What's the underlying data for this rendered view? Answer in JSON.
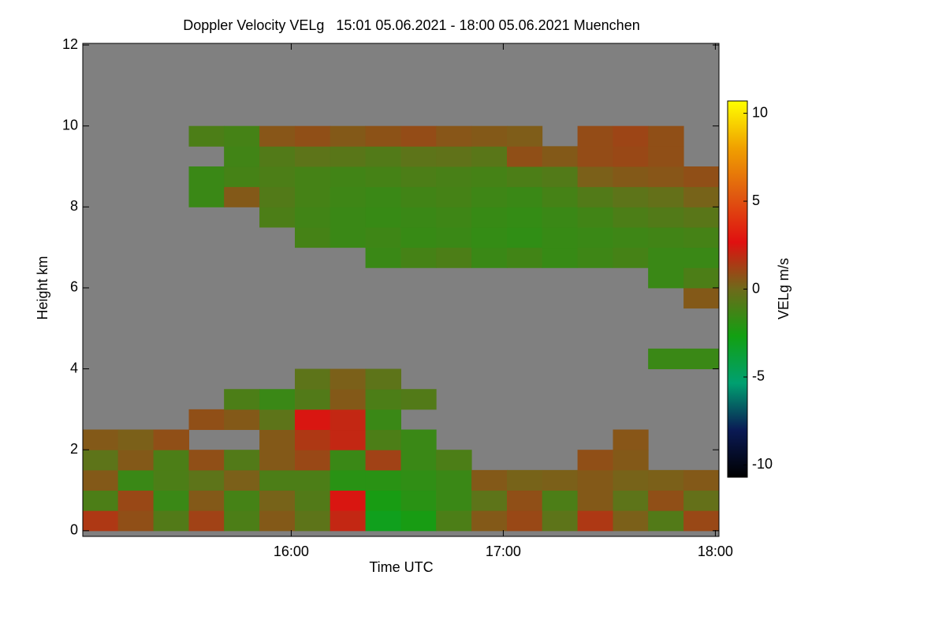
{
  "chart_data": {
    "type": "heatmap",
    "title": "Doppler Velocity VELg   15:01 05.06.2021 - 18:00 05.06.2021 Muenchen",
    "x_label": "Time UTC",
    "y_label": "Height km",
    "colorbar_label": "VELg m/s",
    "background": "#808080",
    "colors": [
      "#000000",
      "#0a1a55",
      "#00a070",
      "#12a012",
      "#6e6a1a",
      "#e01010",
      "#e05a10",
      "#f0a000",
      "#ffff00"
    ],
    "clim": [
      -10.7,
      10.7
    ],
    "cticks": [
      -10,
      -5,
      0,
      5,
      10
    ],
    "xlim": [
      15.017,
      18.017
    ],
    "xticks": [
      {
        "value": 16,
        "label": "16:00"
      },
      {
        "value": 17,
        "label": "17:00"
      },
      {
        "value": 18,
        "label": "18:00"
      }
    ],
    "ylim": [
      -0.14,
      12.04
    ],
    "yticks": [
      0,
      2,
      4,
      6,
      8,
      10,
      12
    ],
    "x_bins": [
      15.017,
      15.183,
      15.35,
      15.517,
      15.683,
      15.85,
      16.017,
      16.183,
      16.35,
      16.517,
      16.683,
      16.85,
      17.017,
      17.183,
      17.35,
      17.517,
      17.683,
      17.85,
      18.017
    ],
    "y_bins": [
      0,
      0.5,
      1,
      1.5,
      2,
      2.5,
      3,
      3.5,
      4,
      4.5,
      5,
      5.5,
      6,
      6.5,
      7,
      7.5,
      8,
      8.5,
      9,
      9.5,
      10,
      10.5,
      11,
      11.5,
      12
    ],
    "values": [
      [
        1.5,
        0.8,
        -0.8,
        1.2,
        -1.0,
        0.5,
        -0.5,
        2.0,
        -3.0,
        -2.5,
        -1.0,
        0.5,
        1.0,
        -0.5,
        1.5,
        0.3,
        -0.8,
        1.0
      ],
      [
        -1.0,
        1.0,
        -1.5,
        0.5,
        -1.2,
        0.2,
        -0.8,
        2.5,
        -2.5,
        -2.0,
        -1.5,
        -0.5,
        0.8,
        -1.0,
        0.5,
        -0.5,
        0.8,
        -0.3
      ],
      [
        0.5,
        -1.5,
        -1.0,
        -0.5,
        0.3,
        -1.0,
        -1.0,
        -2.0,
        -2.0,
        -1.8,
        -1.5,
        0.5,
        0.2,
        0.3,
        0.5,
        0.2,
        0.3,
        0.5
      ],
      [
        -0.5,
        0.5,
        -1.0,
        0.8,
        -0.8,
        0.5,
        1.0,
        -1.5,
        1.2,
        -1.5,
        -1.0,
        null,
        null,
        null,
        0.8,
        0.5,
        null,
        null
      ],
      [
        0.5,
        0.3,
        0.8,
        null,
        null,
        0.5,
        1.5,
        2.0,
        -1.0,
        -1.5,
        null,
        null,
        null,
        null,
        null,
        0.6,
        null,
        null
      ],
      [
        null,
        null,
        null,
        0.8,
        0.5,
        -0.5,
        2.5,
        2.0,
        -1.5,
        null,
        null,
        null,
        null,
        null,
        null,
        null,
        null,
        null
      ],
      [
        null,
        null,
        null,
        null,
        -1.0,
        -1.5,
        -0.8,
        0.5,
        -1.0,
        -0.8,
        null,
        null,
        null,
        null,
        null,
        null,
        null,
        null
      ],
      [
        null,
        null,
        null,
        null,
        null,
        null,
        -0.5,
        0.3,
        -0.5,
        null,
        null,
        null,
        null,
        null,
        null,
        null,
        null,
        null
      ],
      [
        null,
        null,
        null,
        null,
        null,
        null,
        null,
        null,
        null,
        null,
        null,
        null,
        null,
        null,
        null,
        null,
        -1.5,
        -1.5
      ],
      [
        null,
        null,
        null,
        null,
        null,
        null,
        null,
        null,
        null,
        null,
        null,
        null,
        null,
        null,
        null,
        null,
        null,
        null
      ],
      [
        null,
        null,
        null,
        null,
        null,
        null,
        null,
        null,
        null,
        null,
        null,
        null,
        null,
        null,
        null,
        null,
        null,
        null
      ],
      [
        null,
        null,
        null,
        null,
        null,
        null,
        null,
        null,
        null,
        null,
        null,
        null,
        null,
        null,
        null,
        null,
        null,
        0.5
      ],
      [
        null,
        null,
        null,
        null,
        null,
        null,
        null,
        null,
        null,
        null,
        null,
        null,
        null,
        null,
        null,
        null,
        -1.5,
        -1.0
      ],
      [
        null,
        null,
        null,
        null,
        null,
        null,
        null,
        null,
        -1.5,
        -1.2,
        -1.0,
        -1.5,
        -1.3,
        -1.6,
        -1.4,
        -1.2,
        -1.5,
        -1.5
      ],
      [
        null,
        null,
        null,
        null,
        null,
        null,
        -1.2,
        -1.5,
        -1.4,
        -1.6,
        -1.5,
        -1.7,
        -1.8,
        -1.6,
        -1.5,
        -1.4,
        -1.3,
        -1.2
      ],
      [
        null,
        null,
        null,
        null,
        null,
        -1.0,
        -1.3,
        -1.5,
        -1.6,
        -1.5,
        -1.4,
        -1.6,
        -1.7,
        -1.5,
        -1.3,
        -1.0,
        -0.8,
        -0.6
      ],
      [
        null,
        null,
        null,
        -1.5,
        0.5,
        -0.8,
        -1.2,
        -1.4,
        -1.5,
        -1.3,
        -1.2,
        -1.4,
        -1.5,
        -1.2,
        -0.8,
        -0.5,
        -0.3,
        0.2
      ],
      [
        null,
        null,
        null,
        -1.5,
        -1.2,
        -1.0,
        -1.2,
        -1.3,
        -1.2,
        -1.0,
        -1.1,
        -1.2,
        -1.0,
        -0.8,
        0.3,
        0.5,
        0.6,
        0.8
      ],
      [
        null,
        null,
        null,
        null,
        -1.3,
        -0.8,
        -0.5,
        -0.6,
        -0.8,
        -0.5,
        -0.4,
        -0.6,
        0.8,
        0.5,
        0.9,
        1.0,
        0.8,
        null
      ],
      [
        null,
        null,
        null,
        -1.0,
        -1.2,
        0.6,
        0.8,
        0.5,
        0.7,
        0.9,
        0.6,
        0.5,
        0.4,
        null,
        0.9,
        1.1,
        0.8,
        null
      ],
      [
        null,
        null,
        null,
        null,
        null,
        null,
        null,
        null,
        null,
        null,
        null,
        null,
        null,
        null,
        null,
        null,
        null,
        null
      ],
      [
        null,
        null,
        null,
        null,
        null,
        null,
        null,
        null,
        null,
        null,
        null,
        null,
        null,
        null,
        null,
        null,
        null,
        null
      ],
      [
        null,
        null,
        null,
        null,
        null,
        null,
        null,
        null,
        null,
        null,
        null,
        null,
        null,
        null,
        null,
        null,
        null,
        null
      ],
      [
        null,
        null,
        null,
        null,
        null,
        null,
        null,
        null,
        null,
        null,
        null,
        null,
        null,
        null,
        null,
        null,
        null,
        null
      ]
    ]
  }
}
